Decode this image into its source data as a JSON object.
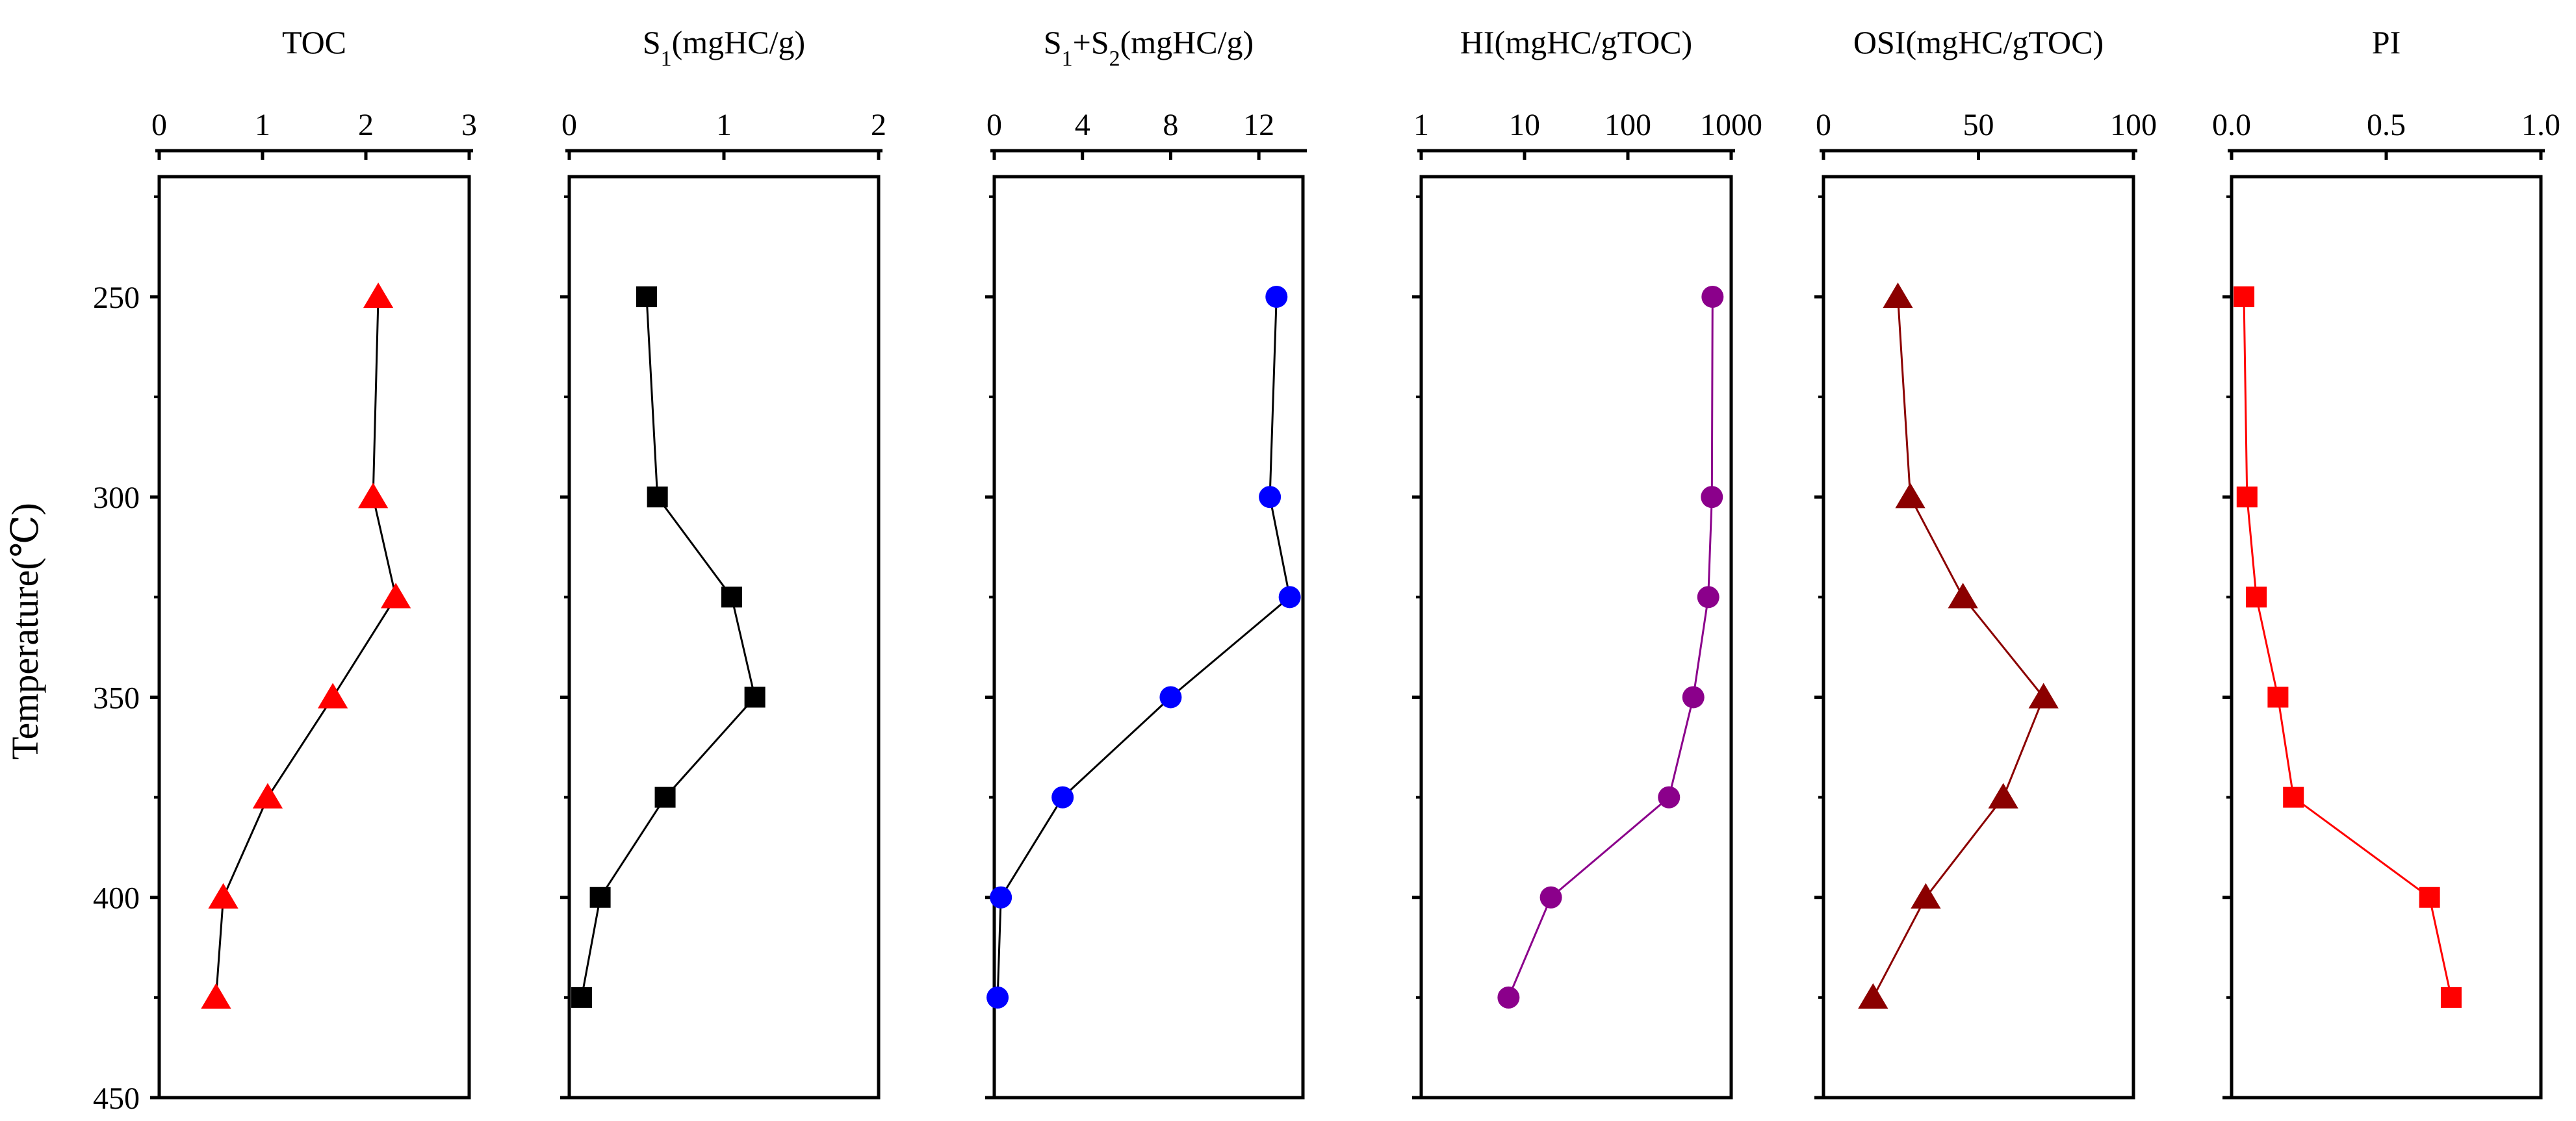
{
  "y_axis": {
    "label": "Temperature(℃)",
    "range": [
      220,
      450
    ],
    "ticks": [
      250,
      300,
      350,
      400,
      450
    ],
    "minor_ticks": [
      225,
      275,
      325,
      375,
      425
    ]
  },
  "chart_data": [
    {
      "type": "line",
      "title": "TOC",
      "xlabel": "TOC",
      "ylabel": "Temperature(℃)",
      "x_scale": "linear",
      "xlim": [
        0,
        3
      ],
      "x_ticks": [
        "0",
        "1",
        "2",
        "3"
      ],
      "y": [
        250,
        300,
        325,
        350,
        375,
        400,
        425
      ],
      "x": [
        2.12,
        2.07,
        2.29,
        1.68,
        1.05,
        0.62,
        0.55
      ],
      "marker": "triangle",
      "color": "#ff0000",
      "line_color": "#000000"
    },
    {
      "type": "line",
      "title": "S1(mgHC/g)",
      "title_parts": {
        "pre": "S",
        "sub": "1",
        "post": "(mgHC/g)"
      },
      "ylabel": "Temperature(℃)",
      "x_scale": "linear",
      "xlim": [
        0,
        2
      ],
      "x_ticks": [
        "0",
        "1",
        "2"
      ],
      "y": [
        250,
        300,
        325,
        350,
        375,
        400,
        425
      ],
      "x": [
        0.5,
        0.57,
        1.05,
        1.2,
        0.62,
        0.2,
        0.08
      ],
      "marker": "square",
      "color": "#000000",
      "line_color": "#000000"
    },
    {
      "type": "line",
      "title": "S1+S2(mgHC/g)",
      "title_parts": {
        "pre": "S",
        "sub": "1",
        "mid": "+S",
        "sub2": "2",
        "post": "(mgHC/g)"
      },
      "ylabel": "Temperature(℃)",
      "x_scale": "linear",
      "xlim": [
        0,
        14
      ],
      "x_ticks": [
        "0",
        "4",
        "8",
        "12"
      ],
      "x_tick_values": [
        0,
        4,
        8,
        12
      ],
      "y": [
        250,
        300,
        325,
        350,
        375,
        400,
        425
      ],
      "x": [
        12.8,
        12.5,
        13.4,
        8.0,
        3.1,
        0.3,
        0.15
      ],
      "marker": "circle",
      "color": "#0000ff",
      "line_color": "#000000"
    },
    {
      "type": "line",
      "title": "HI(mgHC/gTOC)",
      "ylabel": "Temperature(℃)",
      "x_scale": "log",
      "xlim": [
        1,
        1000
      ],
      "x_ticks": [
        "1",
        "10",
        "100",
        "1000"
      ],
      "x_tick_values": [
        1,
        10,
        100,
        1000
      ],
      "y": [
        250,
        300,
        325,
        350,
        375,
        400,
        425
      ],
      "x": [
        660,
        650,
        600,
        430,
        250,
        18,
        7
      ],
      "marker": "circle",
      "color": "#8b008b",
      "line_color": "#8b008b"
    },
    {
      "type": "line",
      "title": "OSI(mgHC/gTOC)",
      "ylabel": "Temperature(℃)",
      "x_scale": "linear",
      "xlim": [
        0,
        100
      ],
      "x_ticks": [
        "0",
        "50",
        "100"
      ],
      "y": [
        250,
        300,
        325,
        350,
        375,
        400,
        425
      ],
      "x": [
        24,
        28,
        45,
        71,
        58,
        33,
        16
      ],
      "marker": "triangle",
      "color": "#8b0000",
      "line_color": "#8b0000"
    },
    {
      "type": "line",
      "title": "PI",
      "ylabel": "Temperature(℃)",
      "x_scale": "linear",
      "xlim": [
        0,
        1
      ],
      "x_ticks": [
        "0.0",
        "0.5",
        "1.0"
      ],
      "y": [
        250,
        300,
        325,
        350,
        375,
        400,
        425
      ],
      "x": [
        0.04,
        0.05,
        0.08,
        0.15,
        0.2,
        0.64,
        0.71
      ],
      "marker": "square",
      "color": "#ff0000",
      "line_color": "#ff0000"
    }
  ]
}
